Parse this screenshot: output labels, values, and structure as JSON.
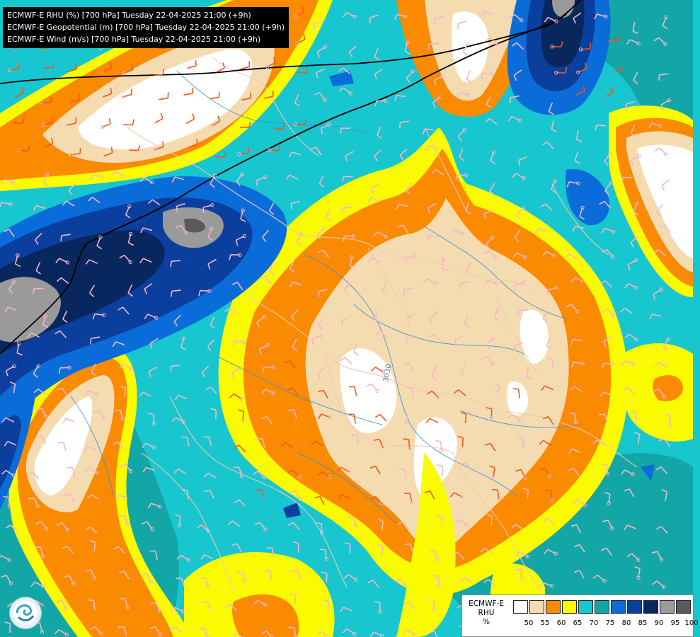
{
  "titles": [
    "ECMWF-E RHU (%) [700 hPa] Tuesday 22-04-2025 21:00 (+9h)",
    "ECMWF-E Geopotential (m) [700 hPa] Tuesday 22-04-2025 21:00 (+9h)",
    "ECMWF-E Wind (m/s) [700 hPa] Tuesday 22-04-2025 21:00 (+9h)"
  ],
  "legend": {
    "model": "ECMWF-E",
    "variable": "RHU",
    "unit": "%",
    "levels": [
      "50",
      "55",
      "60",
      "65",
      "70",
      "75",
      "80",
      "85",
      "90",
      "95",
      "100"
    ],
    "colors": [
      "#ffffff",
      "#f5dcb0",
      "#fa8a00",
      "#fafa00",
      "#16c7cf",
      "#13a6a6",
      "#0a6cd9",
      "#0a3f9e",
      "#08275f",
      "#9a9a9a",
      "#5a5a5a"
    ]
  },
  "contour_label": "3030",
  "logo_icon": "dhmz-logo-icon",
  "map_colors": {
    "background": "#17c6cf",
    "rhu_70": "#13a6a6",
    "rhu_60": "#fafa00",
    "rhu_55": "#fa8a00",
    "rhu_50": "#f5dcb0",
    "rhu_lt50": "#ffffff",
    "rhu_75": "#0a6cd9",
    "rhu_80": "#0a3f9e",
    "rhu_85": "#08275f",
    "rhu_90": "#9a9a9a",
    "geopotential_line": "#000000",
    "borders": "#f2c8b0",
    "rivers": "#3a8fd8",
    "wind_weak": "#f4b6c8",
    "wind_strong": "#f0581a"
  }
}
